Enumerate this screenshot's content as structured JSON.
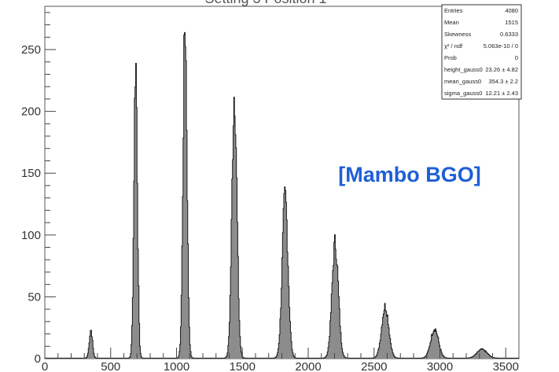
{
  "chart_data": {
    "type": "histogram",
    "title": "",
    "xlabel": "",
    "ylabel": "",
    "xlim": [
      0,
      3600
    ],
    "ylim": [
      0,
      285
    ],
    "x_ticks": [
      0,
      500,
      1000,
      1500,
      2000,
      2500,
      3000,
      3500
    ],
    "y_ticks": [
      0,
      50,
      100,
      150,
      200,
      250
    ],
    "grid": false,
    "bar_fill": "#8c8c8c",
    "bar_edge": "#1a1a1a",
    "annotation": {
      "text": "[Mambo BGO]",
      "color": "#1f5fd6"
    },
    "peaks": [
      {
        "center": 350,
        "height": 23,
        "sigma": 12
      },
      {
        "center": 690,
        "height": 240,
        "sigma": 13
      },
      {
        "center": 1065,
        "height": 270,
        "sigma": 15
      },
      {
        "center": 1440,
        "height": 215,
        "sigma": 19
      },
      {
        "center": 1825,
        "height": 130,
        "sigma": 22
      },
      {
        "center": 2205,
        "height": 93,
        "sigma": 24
      },
      {
        "center": 2585,
        "height": 42,
        "sigma": 27
      },
      {
        "center": 2960,
        "height": 24,
        "sigma": 29
      },
      {
        "center": 3320,
        "height": 7,
        "sigma": 38
      }
    ],
    "stats_box": {
      "rows": [
        {
          "label": "Entries",
          "value": "4080"
        },
        {
          "label": "Mean",
          "value": "1515"
        },
        {
          "label": "Skewness",
          "value": "0.6333"
        },
        {
          "label": "χ² / ndf",
          "value": "5.063e-10 / 0"
        },
        {
          "label": "Prob",
          "value": "0"
        },
        {
          "label": "height_gauss0",
          "value": "23.26 ± 4.82"
        },
        {
          "label": "mean_gauss0",
          "value": "354.3 ± 2.2"
        },
        {
          "label": "sigma_gauss0",
          "value": "12.21 ± 2.43"
        }
      ]
    }
  }
}
